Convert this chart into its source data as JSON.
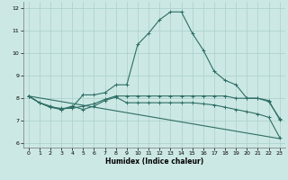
{
  "xlabel": "Humidex (Indice chaleur)",
  "xlim": [
    -0.5,
    23.5
  ],
  "ylim": [
    5.8,
    12.3
  ],
  "yticks": [
    6,
    7,
    8,
    9,
    10,
    11,
    12
  ],
  "xticks": [
    0,
    1,
    2,
    3,
    4,
    5,
    6,
    7,
    8,
    9,
    10,
    11,
    12,
    13,
    14,
    15,
    16,
    17,
    18,
    19,
    20,
    21,
    22,
    23
  ],
  "bg_color": "#cce8e4",
  "grid_color": "#aacfcb",
  "line_color": "#2d6e65",
  "line1_y": [
    8.1,
    7.8,
    7.6,
    7.5,
    7.6,
    8.15,
    8.15,
    8.25,
    8.6,
    8.6,
    10.4,
    10.9,
    11.5,
    11.85,
    11.85,
    10.9,
    10.15,
    9.2,
    8.8,
    8.6,
    8.0,
    8.0,
    7.85,
    7.1
  ],
  "line2_y": [
    8.1,
    7.8,
    7.6,
    7.55,
    7.55,
    7.65,
    7.75,
    7.95,
    8.1,
    8.1,
    8.1,
    8.1,
    8.1,
    8.1,
    8.1,
    8.1,
    8.1,
    8.1,
    8.1,
    8.0,
    8.0,
    8.0,
    7.9,
    7.05
  ],
  "line3_y": [
    8.1,
    7.8,
    7.65,
    7.5,
    7.65,
    7.5,
    7.65,
    7.9,
    8.05,
    7.8,
    7.8,
    7.8,
    7.8,
    7.8,
    7.8,
    7.8,
    7.75,
    7.7,
    7.6,
    7.5,
    7.4,
    7.3,
    7.15,
    6.25
  ],
  "line4_x": [
    0,
    23
  ],
  "line4_y": [
    8.1,
    6.2
  ]
}
